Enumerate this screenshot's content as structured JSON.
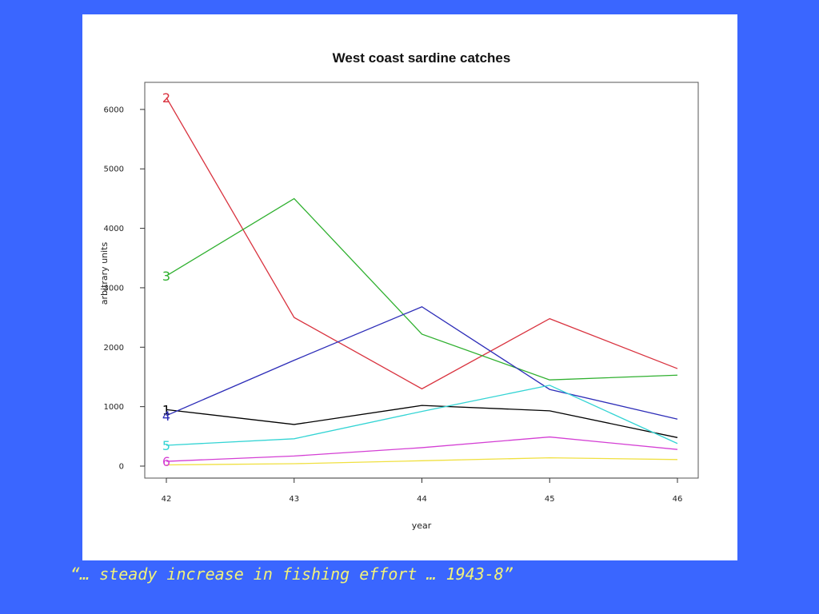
{
  "caption": "“… steady increase in fishing effort … 1943-8”",
  "chart_data": {
    "type": "line",
    "title": "West coast sardine catches",
    "xlabel": "year",
    "ylabel": "arbitrary units",
    "x": [
      42,
      43,
      44,
      45,
      46
    ],
    "x_tick_labels": [
      "42",
      "43",
      "44",
      "45",
      "46"
    ],
    "y_ticks": [
      0,
      1000,
      2000,
      3000,
      4000,
      5000,
      6000
    ],
    "xlim": [
      42,
      46
    ],
    "ylim": [
      0,
      6200
    ],
    "grid": false,
    "series": [
      {
        "name": "1",
        "color": "#000000",
        "values": [
          950,
          700,
          1020,
          930,
          480
        ]
      },
      {
        "name": "2",
        "color": "#d9333f",
        "values": [
          6200,
          2500,
          1300,
          2480,
          1640
        ]
      },
      {
        "name": "3",
        "color": "#2fb02f",
        "values": [
          3200,
          4500,
          2220,
          1450,
          1530
        ]
      },
      {
        "name": "4",
        "color": "#2d2db8",
        "values": [
          850,
          1780,
          2680,
          1290,
          790
        ]
      },
      {
        "name": "5",
        "color": "#33d4d4",
        "values": [
          350,
          460,
          920,
          1360,
          380
        ]
      },
      {
        "name": "6",
        "color": "#d43fd4",
        "values": [
          80,
          170,
          310,
          490,
          280
        ]
      },
      {
        "name": "",
        "color": "#f0e040",
        "values": [
          20,
          40,
          90,
          140,
          110
        ]
      }
    ]
  }
}
